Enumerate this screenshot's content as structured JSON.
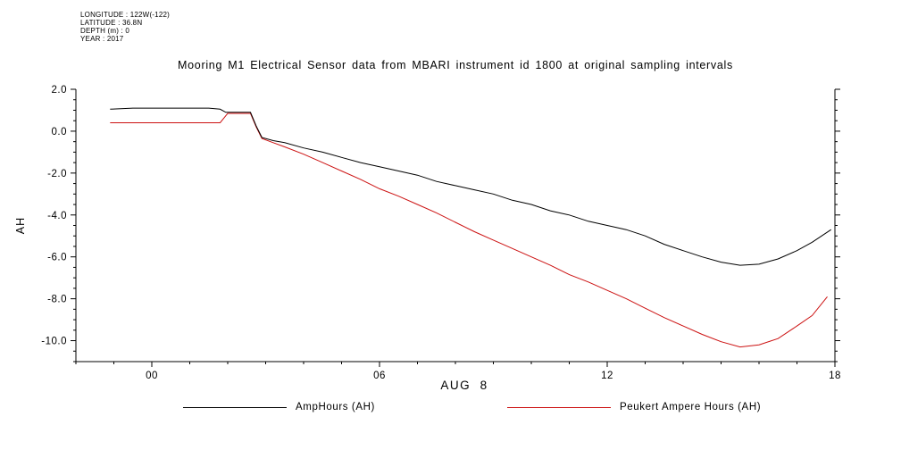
{
  "meta": {
    "longitude": "LONGITUDE : 122W(-122)",
    "latitude": "LATITUDE : 36.8N",
    "depth": "DEPTH (m) : 0",
    "year": "YEAR : 2017"
  },
  "title": "Mooring M1 Electrical Sensor data from MBARI instrument id 1800 at original sampling intervals",
  "legend": [
    {
      "label": "AmpHours (AH)",
      "color": "#000000"
    },
    {
      "label": "Peukert Ampere Hours (AH)",
      "color": "#cc1111"
    }
  ],
  "chart_data": {
    "type": "line",
    "title": "Mooring M1 Electrical Sensor data from MBARI instrument id 1800 at original sampling intervals",
    "xlabel": "AUG  8",
    "ylabel": "AH",
    "xlim": [
      -2,
      18
    ],
    "ylim": [
      -11,
      2
    ],
    "grid": false,
    "legend_position": "bottom",
    "x_ticks": [
      {
        "v": 0,
        "label": "00"
      },
      {
        "v": 6,
        "label": "06"
      },
      {
        "v": 12,
        "label": "12"
      },
      {
        "v": 18,
        "label": "18"
      }
    ],
    "y_ticks": [
      {
        "v": 2,
        "label": "2.0"
      },
      {
        "v": 0,
        "label": "0.0"
      },
      {
        "v": -2,
        "label": "-2.0"
      },
      {
        "v": -4,
        "label": "-4.0"
      },
      {
        "v": -6,
        "label": "-6.0"
      },
      {
        "v": -8,
        "label": "-8.0"
      },
      {
        "v": -10,
        "label": "-10.0"
      }
    ],
    "series": [
      {
        "name": "Peukert Ampere Hours (AH)",
        "color": "#cc1111",
        "points": [
          [
            -1.1,
            0.4
          ],
          [
            0,
            0.4
          ],
          [
            0.5,
            0.4
          ],
          [
            1,
            0.4
          ],
          [
            1.5,
            0.4
          ],
          [
            1.8,
            0.4
          ],
          [
            2.0,
            0.85
          ],
          [
            2.3,
            0.85
          ],
          [
            2.6,
            0.85
          ],
          [
            2.75,
            0.2
          ],
          [
            2.9,
            -0.35
          ],
          [
            3.2,
            -0.55
          ],
          [
            3.5,
            -0.75
          ],
          [
            4,
            -1.1
          ],
          [
            4.5,
            -1.5
          ],
          [
            5,
            -1.9
          ],
          [
            5.5,
            -2.3
          ],
          [
            6,
            -2.75
          ],
          [
            6.5,
            -3.1
          ],
          [
            7,
            -3.5
          ],
          [
            7.5,
            -3.9
          ],
          [
            8,
            -4.35
          ],
          [
            8.5,
            -4.8
          ],
          [
            9,
            -5.2
          ],
          [
            9.5,
            -5.6
          ],
          [
            10,
            -6.0
          ],
          [
            10.5,
            -6.4
          ],
          [
            11,
            -6.85
          ],
          [
            11.5,
            -7.2
          ],
          [
            12,
            -7.6
          ],
          [
            12.5,
            -8.0
          ],
          [
            13,
            -8.45
          ],
          [
            13.5,
            -8.9
          ],
          [
            14,
            -9.3
          ],
          [
            14.5,
            -9.7
          ],
          [
            15,
            -10.05
          ],
          [
            15.5,
            -10.3
          ],
          [
            16,
            -10.2
          ],
          [
            16.5,
            -9.9
          ],
          [
            17,
            -9.3
          ],
          [
            17.4,
            -8.8
          ],
          [
            17.8,
            -7.9
          ]
        ]
      },
      {
        "name": "AmpHours (AH)",
        "color": "#000000",
        "points": [
          [
            -1.1,
            1.05
          ],
          [
            -0.5,
            1.1
          ],
          [
            0,
            1.1
          ],
          [
            0.5,
            1.1
          ],
          [
            1,
            1.1
          ],
          [
            1.5,
            1.1
          ],
          [
            1.8,
            1.05
          ],
          [
            1.95,
            0.9
          ],
          [
            2.3,
            0.9
          ],
          [
            2.6,
            0.9
          ],
          [
            2.75,
            0.25
          ],
          [
            2.9,
            -0.3
          ],
          [
            3.2,
            -0.45
          ],
          [
            3.5,
            -0.55
          ],
          [
            4,
            -0.8
          ],
          [
            4.5,
            -1.0
          ],
          [
            5,
            -1.25
          ],
          [
            5.5,
            -1.5
          ],
          [
            6,
            -1.7
          ],
          [
            6.5,
            -1.9
          ],
          [
            7,
            -2.1
          ],
          [
            7.5,
            -2.4
          ],
          [
            8,
            -2.6
          ],
          [
            8.5,
            -2.8
          ],
          [
            9,
            -3.0
          ],
          [
            9.5,
            -3.3
          ],
          [
            10,
            -3.5
          ],
          [
            10.5,
            -3.8
          ],
          [
            11,
            -4.0
          ],
          [
            11.5,
            -4.3
          ],
          [
            12,
            -4.5
          ],
          [
            12.5,
            -4.7
          ],
          [
            13,
            -5.0
          ],
          [
            13.5,
            -5.4
          ],
          [
            14,
            -5.7
          ],
          [
            14.5,
            -6.0
          ],
          [
            15,
            -6.25
          ],
          [
            15.5,
            -6.4
          ],
          [
            16,
            -6.35
          ],
          [
            16.5,
            -6.1
          ],
          [
            17,
            -5.7
          ],
          [
            17.4,
            -5.3
          ],
          [
            17.9,
            -4.7
          ]
        ]
      }
    ]
  }
}
